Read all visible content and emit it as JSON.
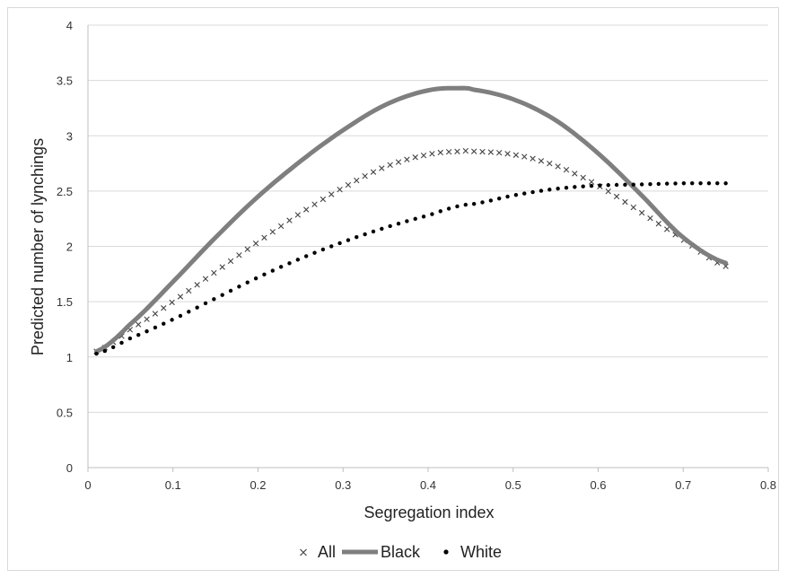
{
  "chart_data": {
    "type": "line",
    "title": "",
    "xlabel": "Segregation index",
    "ylabel": "Predicted number of lynchings",
    "xlim": [
      0,
      0.8
    ],
    "ylim": [
      0,
      4
    ],
    "x_ticks": [
      "0",
      "0.1",
      "0.2",
      "0.3",
      "0.4",
      "0.5",
      "0.6",
      "0.7",
      "0.8"
    ],
    "y_ticks": [
      "0",
      "0.5",
      "1",
      "1.5",
      "2",
      "2.5",
      "3",
      "3.5",
      "4"
    ],
    "grid": "horizontal",
    "legend_position": "bottom",
    "x": [
      0.01,
      0.05,
      0.1,
      0.15,
      0.2,
      0.25,
      0.3,
      0.35,
      0.4,
      0.44,
      0.45,
      0.5,
      0.55,
      0.6,
      0.65,
      0.7,
      0.75
    ],
    "series": [
      {
        "name": "All",
        "marker": "x",
        "color": "#444444",
        "values": [
          1.05,
          1.25,
          1.5,
          1.77,
          2.04,
          2.3,
          2.53,
          2.72,
          2.83,
          2.86,
          2.86,
          2.83,
          2.73,
          2.55,
          2.31,
          2.06,
          1.82
        ]
      },
      {
        "name": "Black",
        "marker": "line",
        "color": "#7f7f7f",
        "values": [
          1.05,
          1.3,
          1.68,
          2.08,
          2.45,
          2.77,
          3.05,
          3.28,
          3.41,
          3.43,
          3.42,
          3.33,
          3.14,
          2.84,
          2.47,
          2.08,
          1.85
        ]
      },
      {
        "name": "White",
        "marker": "dot",
        "color": "#000000",
        "values": [
          1.03,
          1.17,
          1.34,
          1.53,
          1.72,
          1.89,
          2.04,
          2.17,
          2.28,
          2.37,
          2.38,
          2.46,
          2.52,
          2.55,
          2.56,
          2.57,
          2.57
        ]
      }
    ]
  }
}
